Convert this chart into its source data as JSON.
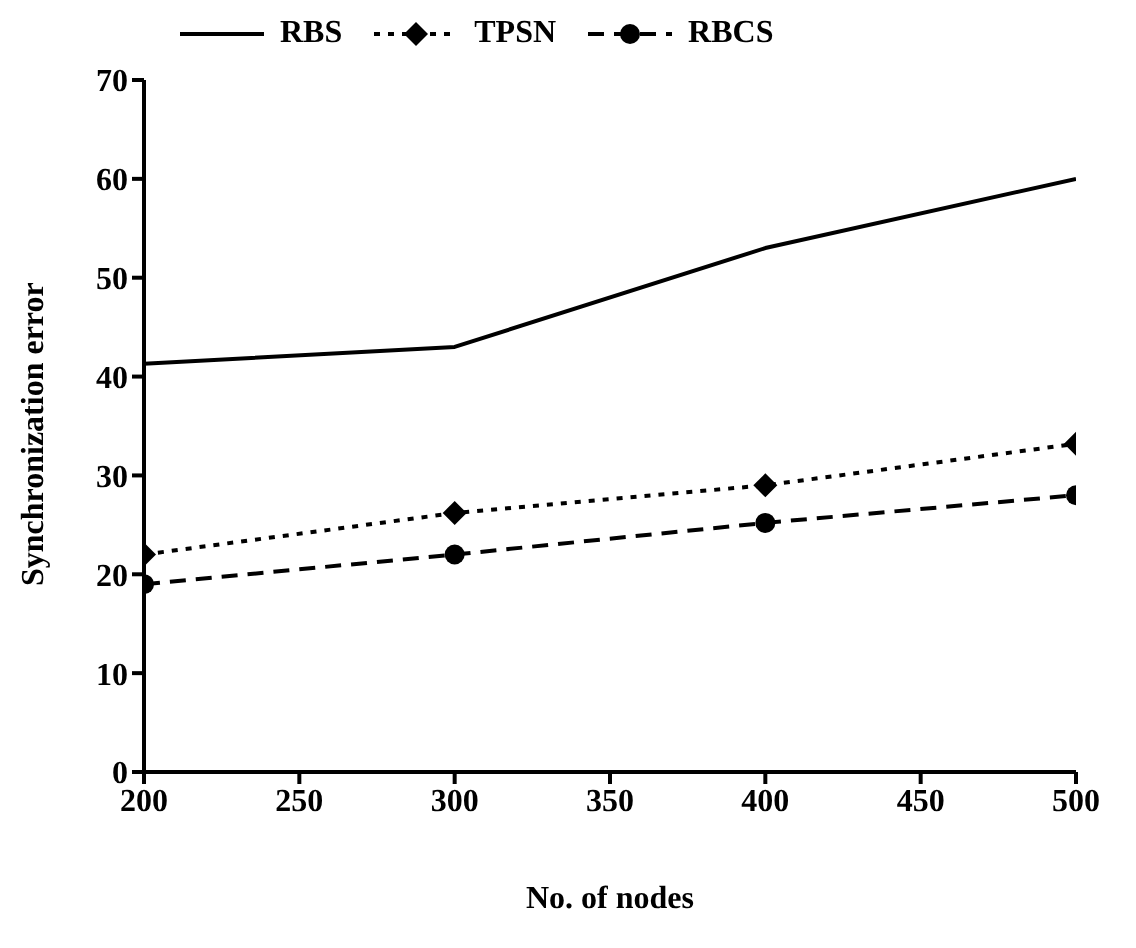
{
  "chart_data": {
    "type": "line",
    "xlabel": "No. of nodes",
    "ylabel": "Synchronization error",
    "x": [
      200,
      300,
      400,
      500
    ],
    "series": [
      {
        "name": "RBS",
        "color": "#000000",
        "values": [
          41.3,
          43,
          53,
          60
        ],
        "marker": "none",
        "line_style": "solid"
      },
      {
        "name": "TPSN",
        "color": "#000000",
        "values": [
          22,
          26.2,
          29,
          33.2
        ],
        "marker": "diamond",
        "line_style": "dotted"
      },
      {
        "name": "RBCS",
        "color": "#000000",
        "values": [
          19,
          22,
          25.2,
          28
        ],
        "marker": "circle",
        "line_style": "dashed"
      }
    ],
    "xlim": [
      200,
      500
    ],
    "xticks": [
      200,
      250,
      300,
      350,
      400,
      450,
      500
    ],
    "ylim": [
      0,
      70
    ],
    "yticks": [
      0,
      10,
      20,
      30,
      40,
      50,
      60,
      70
    ],
    "grid": false,
    "legend": "top left"
  }
}
